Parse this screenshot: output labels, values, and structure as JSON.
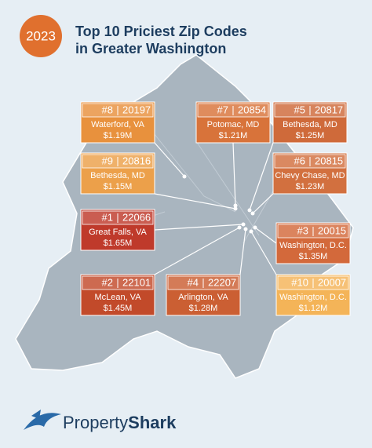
{
  "header": {
    "badge": "2023",
    "title_line1": "Top 10 Priciest Zip Codes",
    "title_line2": "in Greater Washington"
  },
  "labels": [
    {
      "rank": "#8",
      "zip": "20197",
      "place": "Waterford, VA",
      "price": "$1.19M"
    },
    {
      "rank": "#7",
      "zip": "20854",
      "place": "Potomac, MD",
      "price": "$1.21M"
    },
    {
      "rank": "#5",
      "zip": "20817",
      "place": "Bethesda, MD",
      "price": "$1.25M"
    },
    {
      "rank": "#9",
      "zip": "20816",
      "place": "Bethesda, MD",
      "price": "$1.15M"
    },
    {
      "rank": "#6",
      "zip": "20815",
      "place": "Chevy Chase, MD",
      "price": "$1.23M"
    },
    {
      "rank": "#1",
      "zip": "22066",
      "place": "Great Falls, VA",
      "price": "$1.65M"
    },
    {
      "rank": "#3",
      "zip": "20015",
      "place": "Washington, D.C.",
      "price": "$1.35M"
    },
    {
      "rank": "#2",
      "zip": "22101",
      "place": "McLean, VA",
      "price": "$1.45M"
    },
    {
      "rank": "#4",
      "zip": "22207",
      "place": "Arlington, VA",
      "price": "$1.28M"
    },
    {
      "rank": "#10",
      "zip": "20007",
      "place": "Washington, D.C.",
      "price": "$1.12M"
    }
  ],
  "logo": {
    "part1": "Property",
    "part2": "Shark"
  }
}
